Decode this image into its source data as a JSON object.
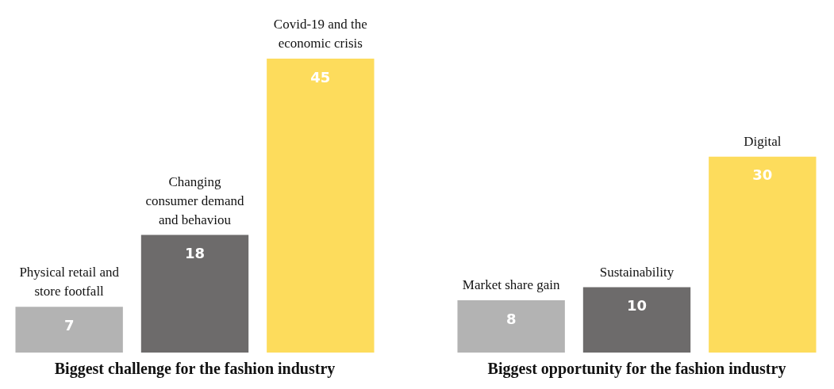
{
  "chart_data": [
    {
      "type": "bar",
      "title": "Biggest challenge for the fashion industry",
      "categories": [
        "Physical retail and store footfall",
        "Changing consumer demand and behaviou",
        "Covid-19 and the economic crisis"
      ],
      "values": [
        7,
        18,
        45
      ],
      "colors": [
        "#b3b3b3",
        "#6d6b6b",
        "#fddc5c"
      ],
      "ylim": [
        0,
        53
      ],
      "data_labels": true,
      "tick_labels": false
    },
    {
      "type": "bar",
      "title": "Biggest opportunity for the fashion industry",
      "categories": [
        "Market share gain",
        "Sustainability",
        "Digital"
      ],
      "values": [
        8,
        10,
        30
      ],
      "colors": [
        "#b3b3b3",
        "#6d6b6b",
        "#fddc5c"
      ],
      "ylim": [
        0,
        53
      ],
      "data_labels": true,
      "tick_labels": false
    }
  ]
}
